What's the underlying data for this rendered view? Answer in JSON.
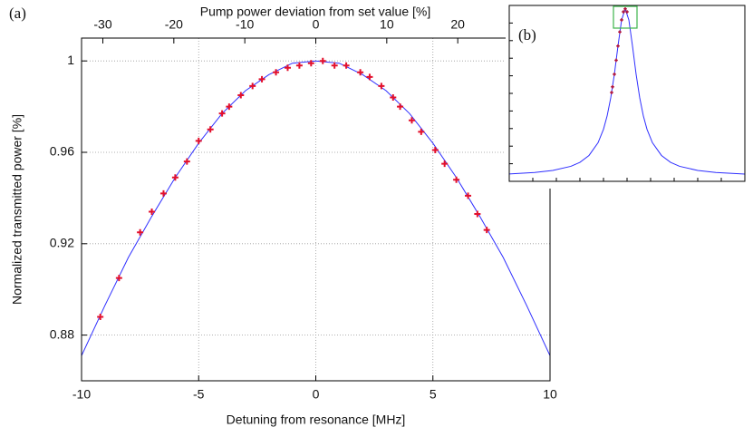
{
  "chart_data": [
    {
      "type": "line",
      "panel": "(a)",
      "x_label": "Detuning from resonance [MHz]",
      "y_label": "Normalized transmitted power [%]",
      "x2_label": "Pump power deviation from set value [%]",
      "xlim": [
        -10,
        10
      ],
      "xticks": [
        -10,
        -5,
        0,
        5,
        10
      ],
      "ylim": [
        0.86,
        1.01
      ],
      "yticks": [
        1,
        0.96,
        0.92,
        0.88
      ],
      "x2lim": [
        -33,
        33
      ],
      "x2ticks": [
        -30,
        -20,
        -10,
        0,
        10,
        20
      ],
      "grid": true,
      "series": [
        {
          "type": "line",
          "color": "#2f2fff",
          "x": [
            -10,
            -9,
            -8,
            -7,
            -6,
            -5,
            -4,
            -3,
            -2,
            -1,
            0,
            1,
            2,
            3,
            4,
            5,
            6,
            7,
            8,
            9,
            10
          ],
          "values": [
            0.871,
            0.893,
            0.914,
            0.932,
            0.949,
            0.964,
            0.977,
            0.987,
            0.994,
            0.999,
            1,
            0.999,
            0.994,
            0.987,
            0.977,
            0.964,
            0.949,
            0.932,
            0.914,
            0.893,
            0.871
          ]
        },
        {
          "type": "scatter",
          "color": "#e3102c",
          "x": [
            -9.2,
            -8.4,
            -7.5,
            -7,
            -6.5,
            -6,
            -5.5,
            -5,
            -4.5,
            -4,
            -3.7,
            -3.2,
            -2.7,
            -2.3,
            -1.7,
            -1.2,
            -0.7,
            -0.2,
            0.3,
            0.8,
            1.3,
            1.9,
            2.3,
            2.8,
            3.3,
            3.6,
            4.1,
            4.5,
            5.1,
            5.5,
            6,
            6.5,
            6.9,
            7.3
          ],
          "values": [
            0.888,
            0.905,
            0.925,
            0.934,
            0.942,
            0.949,
            0.956,
            0.965,
            0.97,
            0.977,
            0.98,
            0.985,
            0.989,
            0.992,
            0.995,
            0.997,
            0.998,
            0.999,
            1,
            0.998,
            0.998,
            0.995,
            0.993,
            0.989,
            0.984,
            0.98,
            0.974,
            0.969,
            0.961,
            0.955,
            0.948,
            0.941,
            0.933,
            0.926
          ]
        }
      ]
    },
    {
      "type": "line",
      "panel": "(b)",
      "xlim": [
        -64,
        66
      ],
      "ylim": [
        0,
        1.02
      ],
      "series": [
        {
          "type": "line",
          "color": "#2f2fff",
          "x": [
            -64,
            -50,
            -40,
            -30,
            -25,
            -20,
            -15,
            -12,
            -10,
            -8,
            -6,
            -4,
            -2,
            0,
            2,
            4,
            6,
            8,
            10,
            12,
            15,
            20,
            25,
            30,
            40,
            50,
            66
          ],
          "values": [
            0.043,
            0.051,
            0.063,
            0.087,
            0.11,
            0.15,
            0.224,
            0.302,
            0.379,
            0.484,
            0.621,
            0.785,
            0.936,
            1,
            0.936,
            0.785,
            0.621,
            0.484,
            0.379,
            0.302,
            0.224,
            0.15,
            0.11,
            0.087,
            0.063,
            0.051,
            0.042
          ]
        },
        {
          "type": "scatter",
          "color": "#b0103a",
          "x": [
            -7.5,
            -7,
            -6,
            -5,
            -4,
            -3,
            -2,
            -1,
            0,
            1
          ],
          "values": [
            0.515,
            0.548,
            0.621,
            0.702,
            0.785,
            0.866,
            0.936,
            0.983,
            1,
            0.983
          ]
        }
      ]
    }
  ]
}
